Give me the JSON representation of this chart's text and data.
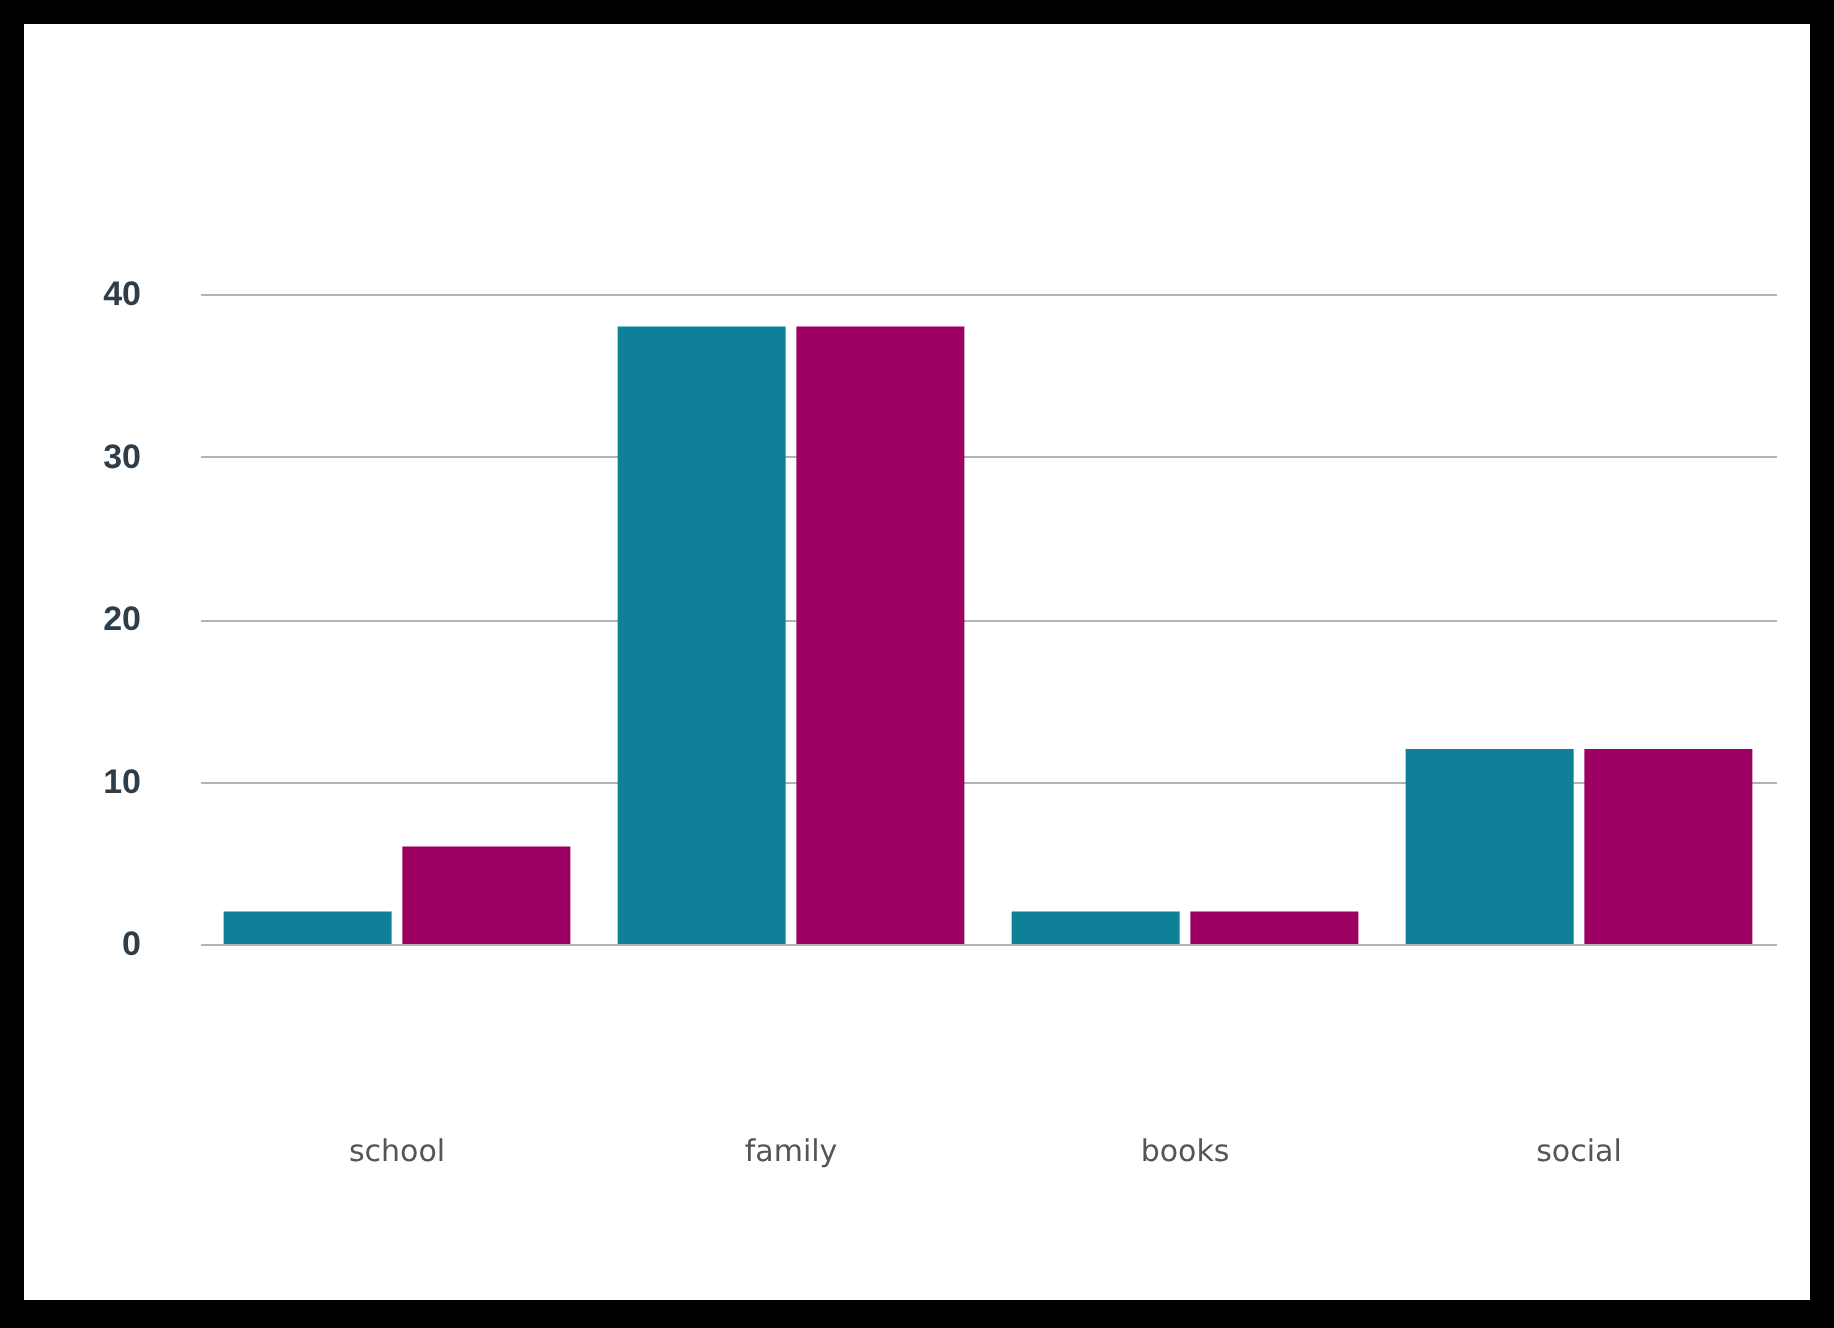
{
  "chart_data": {
    "type": "bar",
    "categories": [
      "school",
      "family",
      "books",
      "social"
    ],
    "series": [
      {
        "color": "#0e8097",
        "values": [
          2,
          38,
          2,
          12
        ]
      },
      {
        "color": "#9c0062",
        "values": [
          6,
          38,
          2,
          12
        ]
      }
    ],
    "ylim": [
      0,
      40
    ],
    "yticks": [
      0,
      10,
      20,
      30,
      40
    ],
    "grid": "y",
    "legend": false
  }
}
